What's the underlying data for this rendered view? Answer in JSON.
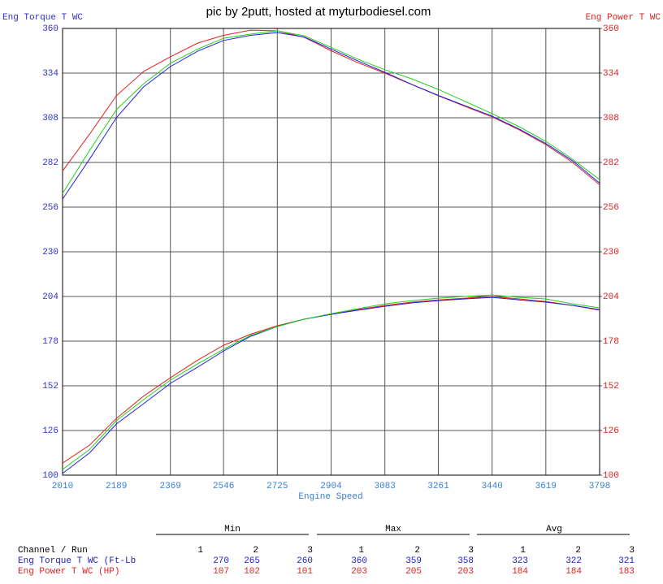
{
  "chart_data": {
    "type": "line",
    "title": "pic by 2putt, hosted at myturbodiesel.com",
    "y_label": "Eng Torque T WC",
    "y2_label": "Eng Power T WC",
    "x_label": "Engine Speed",
    "x": [
      2010,
      2100,
      2189,
      2280,
      2369,
      2460,
      2546,
      2636,
      2725,
      2815,
      2904,
      2994,
      3083,
      3172,
      3261,
      3350,
      3440,
      3530,
      3619,
      3708,
      3798
    ],
    "xlim": [
      2010,
      3798
    ],
    "xticks": [
      2010,
      2189,
      2369,
      2546,
      2725,
      2904,
      3083,
      3261,
      3440,
      3619,
      3798
    ],
    "ylim": [
      100,
      360
    ],
    "yticks": [
      100,
      126,
      152,
      178,
      204,
      230,
      256,
      282,
      308,
      334,
      360
    ],
    "y2lim": [
      100,
      360
    ],
    "y2ticks": [
      100,
      126,
      152,
      178,
      204,
      230,
      256,
      282,
      308,
      334,
      360
    ],
    "y_color": "#3030d0",
    "y2_color": "#e02020",
    "x_color": "#3a7ed0",
    "grid": true,
    "series": [
      {
        "color": "#e02020",
        "values": [
          277,
          298.5,
          320.8,
          335,
          343.5,
          351.5,
          356,
          359,
          358.6,
          354.8,
          347,
          340,
          334,
          327.4,
          320.8,
          314.6,
          308.5,
          301,
          292.4,
          282,
          269
        ]
      },
      {
        "color": "#2020e0",
        "values": [
          260.7,
          284,
          308,
          326,
          337.8,
          346.8,
          353,
          356,
          357.6,
          355,
          348,
          341,
          334.5,
          327.5,
          321,
          315,
          309,
          301.5,
          293,
          283,
          270
        ]
      },
      {
        "color": "#20d020",
        "values": [
          264,
          289,
          312.7,
          327.8,
          339.7,
          348,
          354.3,
          356.7,
          358.6,
          355.7,
          349,
          342,
          336,
          330.7,
          324.5,
          317.5,
          310.4,
          302.8,
          294.3,
          283.9,
          272
        ]
      },
      {
        "color": "#e02020",
        "axis": "y2",
        "values": [
          107,
          117.5,
          133,
          146,
          156.7,
          167,
          175.6,
          182,
          187,
          190.8,
          193.6,
          196.4,
          198.8,
          200.7,
          202,
          203,
          204,
          202.6,
          201,
          198.8,
          196
        ]
      },
      {
        "color": "#2020e0",
        "axis": "y2",
        "values": [
          101,
          113,
          129.8,
          141.6,
          153.4,
          162.9,
          172.3,
          180.8,
          186.5,
          190.8,
          193.6,
          196,
          198.3,
          200.2,
          201.6,
          202.6,
          203.5,
          202,
          200.7,
          198.8,
          196.4
        ]
      },
      {
        "color": "#20d020",
        "axis": "y2",
        "values": [
          103.3,
          115,
          131.7,
          144,
          155.3,
          164.8,
          173.3,
          181.3,
          186.5,
          190.8,
          194,
          196.9,
          199.7,
          201.6,
          203,
          204,
          204.9,
          203.5,
          202.6,
          199.7,
          197.4
        ]
      }
    ]
  },
  "table": {
    "groups": [
      "Min",
      "Max",
      "Avg"
    ],
    "header": "Channel / Run",
    "runs": [
      1,
      2,
      3,
      1,
      2,
      3,
      1,
      2,
      3
    ],
    "rows": [
      {
        "label": "Eng Torque T WC (Ft-Lb",
        "color": "#2020c0",
        "values": [
          270,
          265,
          260,
          360,
          359,
          358,
          323,
          322,
          321
        ]
      },
      {
        "label": "Eng Power T WC (HP)",
        "color": "#e02020",
        "values": [
          107,
          102,
          101,
          203,
          205,
          203,
          184,
          184,
          183
        ]
      }
    ]
  }
}
